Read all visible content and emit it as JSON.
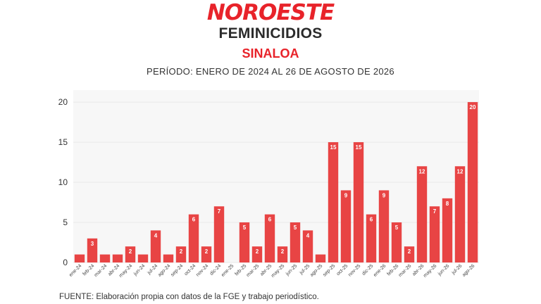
{
  "header": {
    "logo": "NOROESTE",
    "title": "FEMINICIDIOS",
    "subtitle": "SINALOA",
    "period": "PERÍODO: ENERO DE 2024 AL 26 DE AGOSTO DE 2026"
  },
  "footer": {
    "source": "FUENTE: Elaboración propia con datos de la FGE y trabajo periodístico."
  },
  "colors": {
    "bar": "#e84444",
    "accent": "#e8232a",
    "plot_bg": "#f7f7f7",
    "grid": "#e8e8e8"
  },
  "chart_data": {
    "type": "bar",
    "categories": [
      "ene-24",
      "feb-24",
      "mar-24",
      "abr-24",
      "may-24",
      "jun-24",
      "jul-24",
      "ago-24",
      "sep-24",
      "oct-24",
      "nov-24",
      "dic-24",
      "ene-25",
      "feb-25",
      "mar-25",
      "abr-25",
      "may-25",
      "jun-25",
      "jul-25",
      "ago-25",
      "sep-25",
      "oct-25",
      "nov-25",
      "dic-25",
      "ene-26",
      "feb-26",
      "mar-26",
      "abr-26",
      "may-26",
      "jun-26",
      "jul-26",
      "ago-26"
    ],
    "values": [
      1,
      3,
      1,
      1,
      2,
      1,
      4,
      1,
      2,
      6,
      2,
      7,
      0,
      5,
      2,
      6,
      2,
      5,
      4,
      1,
      15,
      9,
      15,
      6,
      9,
      5,
      2,
      12,
      7,
      8,
      12,
      20
    ],
    "labeled": [
      false,
      true,
      false,
      false,
      true,
      false,
      true,
      false,
      true,
      true,
      true,
      true,
      false,
      true,
      true,
      true,
      true,
      true,
      true,
      false,
      true,
      true,
      true,
      true,
      true,
      true,
      true,
      true,
      true,
      true,
      true,
      true
    ],
    "ylim": [
      0,
      21.5
    ],
    "yticks": [
      0,
      5,
      10,
      15,
      20
    ],
    "grid": true,
    "xlabel": "",
    "ylabel": ""
  }
}
